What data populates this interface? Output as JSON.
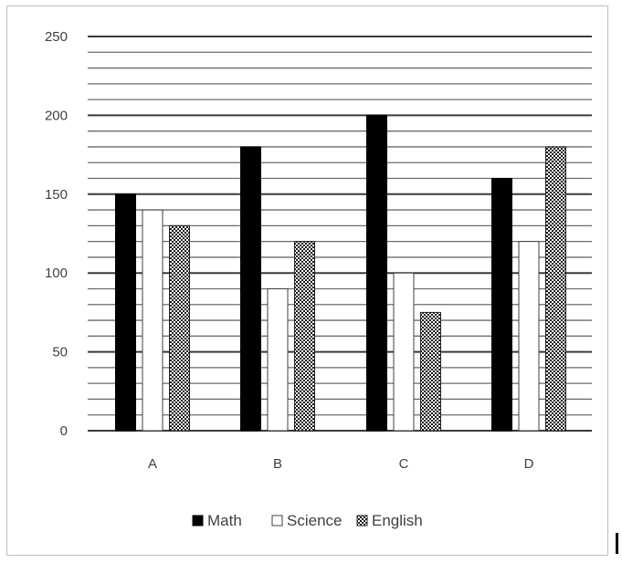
{
  "chart_data": {
    "type": "bar",
    "title": "",
    "xlabel": "",
    "ylabel": "",
    "categories": [
      "A",
      "B",
      "C",
      "D"
    ],
    "ylim": [
      0,
      250
    ],
    "yticks": [
      0,
      50,
      100,
      150,
      200,
      250
    ],
    "minor_gridline_step": 10,
    "grid": true,
    "legend_position": "bottom",
    "series": [
      {
        "name": "Math",
        "values": [
          150,
          180,
          200,
          160
        ],
        "pattern": "solid",
        "color": "#000000"
      },
      {
        "name": "Science",
        "values": [
          140,
          90,
          100,
          120
        ],
        "pattern": "outline",
        "color": "#ffffff"
      },
      {
        "name": "English",
        "values": [
          130,
          120,
          75,
          180
        ],
        "pattern": "checker",
        "color": "#000000"
      }
    ]
  }
}
